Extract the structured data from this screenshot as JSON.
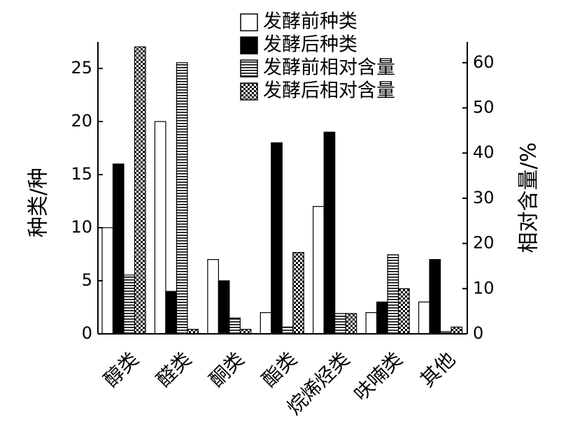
{
  "chart_data": {
    "type": "bar",
    "categories": [
      "醇类",
      "醛类",
      "酮类",
      "酯类",
      "烷烯烃类",
      "呋喃类",
      "其他"
    ],
    "series": [
      {
        "name": "发酵前种类",
        "axis": "left",
        "style": "white",
        "values": [
          10,
          20,
          7,
          2,
          12,
          2,
          3
        ]
      },
      {
        "name": "发酵后种类",
        "axis": "left",
        "style": "black",
        "values": [
          16,
          4,
          5,
          18,
          19,
          3,
          7
        ]
      },
      {
        "name": "发酵前相对含量",
        "axis": "right",
        "style": "hlines",
        "values": [
          13,
          60,
          3.5,
          1.5,
          4.5,
          17.5,
          0.5
        ]
      },
      {
        "name": "发酵后相对含量",
        "axis": "right",
        "style": "checker",
        "values": [
          63.5,
          1,
          1,
          18,
          4.5,
          10,
          1.5
        ]
      }
    ],
    "ylabel": "种类/种",
    "ylabel_right": "相对含量/%",
    "ylim": [
      0,
      27.5
    ],
    "ylim_right": [
      0,
      64.6
    ],
    "yticks": [
      0,
      5,
      10,
      15,
      20,
      25
    ],
    "yticks_right": [
      0,
      10,
      20,
      30,
      40,
      50,
      60
    ],
    "legend": "top-right",
    "grid": false
  }
}
